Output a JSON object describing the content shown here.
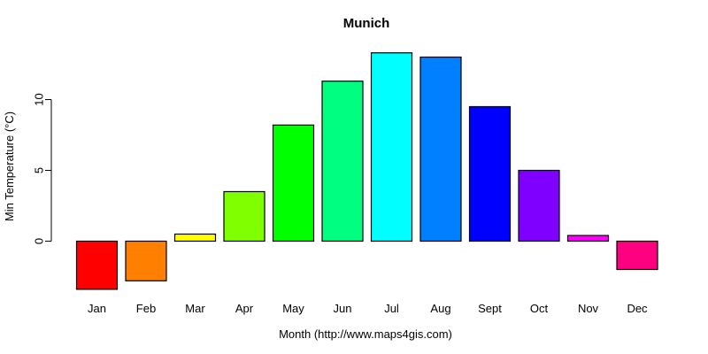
{
  "chart_data": {
    "type": "bar",
    "title": "Munich",
    "xlabel": "Month (http://www.maps4gis.com)",
    "ylabel": "Min Temperature (°C)",
    "categories": [
      "Jan",
      "Feb",
      "Mar",
      "Apr",
      "May",
      "Jun",
      "Jul",
      "Aug",
      "Sept",
      "Oct",
      "Nov",
      "Dec"
    ],
    "values": [
      -3.4,
      -2.8,
      0.5,
      3.5,
      8.2,
      11.3,
      13.3,
      13.0,
      9.5,
      5.0,
      0.4,
      -2.0
    ],
    "bar_colors": [
      "#FF0000",
      "#FF8000",
      "#FFFF00",
      "#80FF00",
      "#00FF00",
      "#00FF80",
      "#00FFFF",
      "#0080FF",
      "#0000FF",
      "#8000FF",
      "#FF00FF",
      "#FF0080"
    ],
    "bar_border_color": "#000000",
    "yticks": [
      0,
      5,
      10
    ],
    "ylim": [
      -3.4,
      13.3
    ],
    "grid": false,
    "legend": "none",
    "background_color": "#FFFFFF"
  }
}
